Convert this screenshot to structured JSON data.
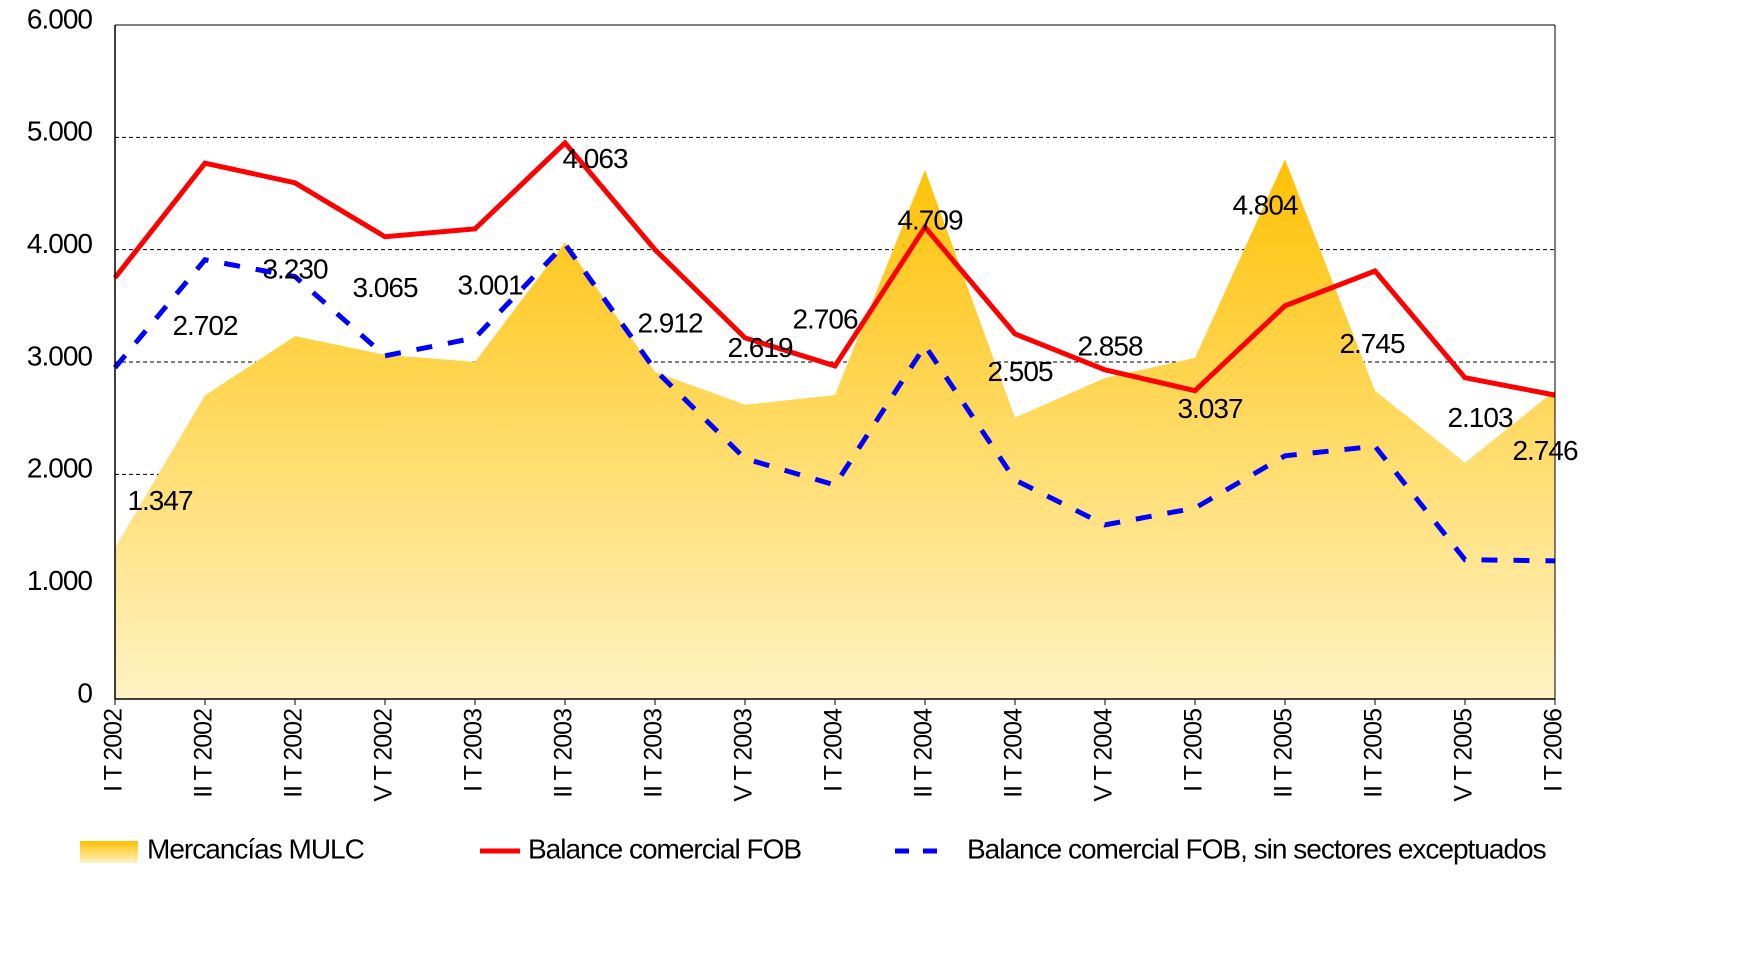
{
  "chart_data": {
    "type": "area-line",
    "categories": [
      "I T 2002",
      "II T 2002",
      "II T 2002",
      "V T 2002",
      "I T 2003",
      "II T 2003",
      "II T 2003",
      "V T 2003",
      "I T 2004",
      "II T 2004",
      "II T 2004",
      "V T 2004",
      "I T 2005",
      "II T 2005",
      "II T 2005",
      "V T 2005",
      "I T 2006"
    ],
    "series": [
      {
        "name": "Mercancías MULC",
        "kind": "area",
        "color": "#ffc000",
        "values": [
          1347,
          2702,
          3230,
          3065,
          3001,
          4063,
          2912,
          2619,
          2706,
          4709,
          2505,
          2858,
          3037,
          4804,
          2745,
          2103,
          2746
        ],
        "value_labels": [
          "1.347",
          "2.702",
          "3.230",
          "3.065",
          "3.001",
          "4.063",
          "2.912",
          "2.619",
          "2.706",
          "4.709",
          "2.505",
          "2.858",
          "3.037",
          "4.804",
          "2.745",
          "2.103",
          "2.746"
        ]
      },
      {
        "name": "Balance comercial FOB",
        "kind": "line",
        "color": "#ff0000",
        "values": [
          3750,
          4770,
          4595,
          4115,
          4185,
          4950,
          4000,
          3215,
          2965,
          4200,
          3250,
          2930,
          2745,
          3500,
          3810,
          2860,
          2705
        ]
      },
      {
        "name": "Balance comercial FOB, sin sectores exceptuados",
        "kind": "dashed",
        "color": "#0000ff",
        "values": [
          2950,
          3910,
          3760,
          3055,
          3215,
          4050,
          2930,
          2140,
          1905,
          3145,
          1950,
          1550,
          1700,
          2165,
          2250,
          1240,
          1230
        ]
      }
    ],
    "ylim": [
      0,
      6000
    ],
    "yticks": [
      0,
      {
        "value": 1000,
        "label": "1.000"
      },
      {
        "value": 2000,
        "label": "2.000"
      },
      {
        "value": 3000,
        "label": "3.000"
      },
      {
        "value": 4000,
        "label": "4.000"
      },
      {
        "value": 5000,
        "label": "5.000"
      },
      {
        "value": 6000,
        "label": "6.000"
      }
    ],
    "grid": true,
    "legend": "bottom"
  }
}
